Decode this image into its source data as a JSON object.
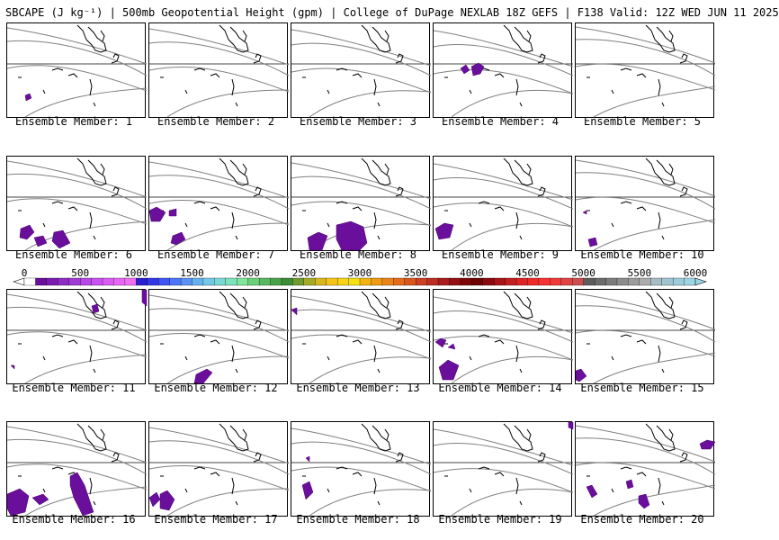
{
  "header": {
    "title": "SBCAPE (J kg⁻¹) | 500mb Geopotential Height (gpm) | College of DuPage NEXLAB 18Z GEFS | F138 Valid: 12Z WED JUN 11 2025"
  },
  "colorbar": {
    "ticks": [
      "0",
      "500",
      "1000",
      "1500",
      "2000",
      "2500",
      "3000",
      "3500",
      "4000",
      "4500",
      "5000",
      "5500",
      "6000"
    ],
    "colors": [
      "#ffffff",
      "#6a0e9c",
      "#7d1db0",
      "#8f2cc4",
      "#a13bd6",
      "#b548e6",
      "#c852f0",
      "#d95cf4",
      "#e866f4",
      "#f06ef0",
      "#2a1fd0",
      "#3437e8",
      "#3f55f4",
      "#4c74f8",
      "#5a92f4",
      "#67b0ee",
      "#72c8e6",
      "#7ad8d6",
      "#7ee2bc",
      "#80e69c",
      "#6ad07a",
      "#58b860",
      "#4aa248",
      "#3c8c38",
      "#6e9a2e",
      "#a4aa26",
      "#d6b81e",
      "#f4c418",
      "#f8d414",
      "#f6e010",
      "#f2b210",
      "#ee9a12",
      "#e88416",
      "#e26c1a",
      "#d8561e",
      "#cc4020",
      "#bc2c20",
      "#a81c1c",
      "#941010",
      "#7e0808",
      "#6c0404",
      "#8a0a10",
      "#a81418",
      "#c41e1e",
      "#dc2424",
      "#ee2a28",
      "#f83232",
      "#f03a3a",
      "#e04444",
      "#cc4e4e",
      "#5c5c5c",
      "#6c6c6c",
      "#7c7c7c",
      "#8c8c8c",
      "#9c9c9c",
      "#acacac",
      "#a8bcc4",
      "#a0c4d0",
      "#9cccdc",
      "#9cd4e4"
    ]
  },
  "members": [
    {
      "label": "Ensemble Member: 1"
    },
    {
      "label": "Ensemble Member: 2"
    },
    {
      "label": "Ensemble Member: 3"
    },
    {
      "label": "Ensemble Member: 4"
    },
    {
      "label": "Ensemble Member: 5"
    },
    {
      "label": "Ensemble Member: 6"
    },
    {
      "label": "Ensemble Member: 7"
    },
    {
      "label": "Ensemble Member: 8"
    },
    {
      "label": "Ensemble Member: 9"
    },
    {
      "label": "Ensemble Member: 10"
    },
    {
      "label": "Ensemble Member: 11"
    },
    {
      "label": "Ensemble Member: 12"
    },
    {
      "label": "Ensemble Member: 13"
    },
    {
      "label": "Ensemble Member: 14"
    },
    {
      "label": "Ensemble Member: 15"
    },
    {
      "label": "Ensemble Member: 16"
    },
    {
      "label": "Ensemble Member: 17"
    },
    {
      "label": "Ensemble Member: 18"
    },
    {
      "label": "Ensemble Member: 19"
    },
    {
      "label": "Ensemble Member: 20"
    }
  ],
  "colors": {
    "cape_fill": "#6a0e9c",
    "contour": "#808080",
    "coast": "#000000",
    "panel_border": "#000000"
  }
}
